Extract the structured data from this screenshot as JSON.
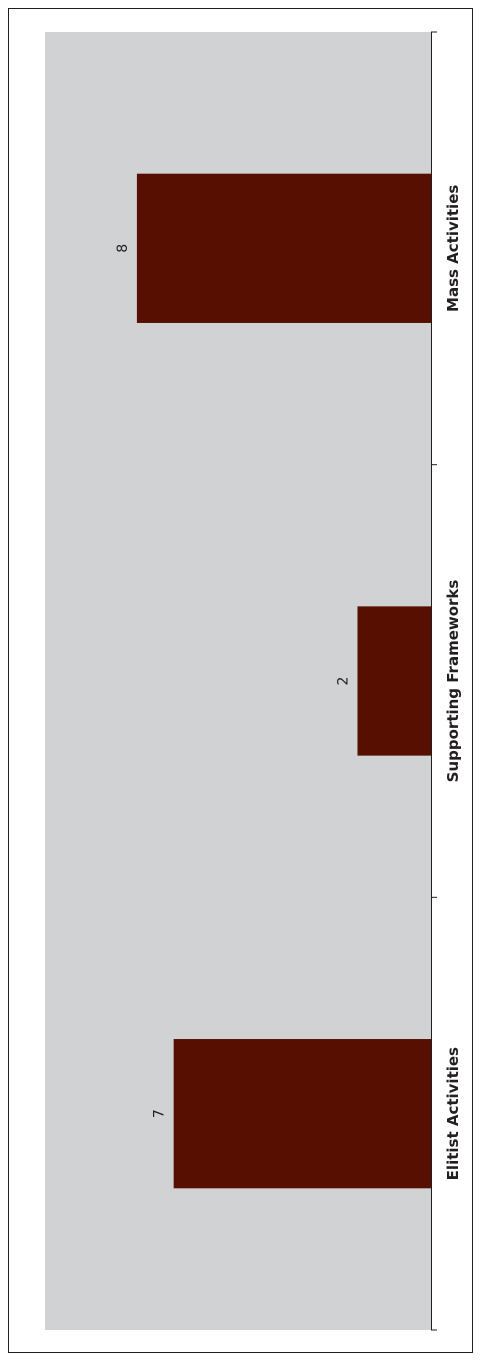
{
  "chart_data": {
    "type": "bar",
    "orientation": "rotated-90",
    "categories": [
      "Elitist Activities",
      "Supporting Frameworks",
      "Mass Activities"
    ],
    "values": [
      7,
      2,
      8
    ],
    "data_labels": [
      "7",
      "2",
      "8"
    ],
    "title": "",
    "xlabel": "",
    "ylabel": "",
    "ylim": [
      0,
      10.5
    ],
    "grid": false,
    "legend": "none",
    "colors": {
      "bar": "#560F00",
      "plot_background": "#D1D2D4",
      "frame": "#231F20",
      "text": "#231F20"
    }
  }
}
